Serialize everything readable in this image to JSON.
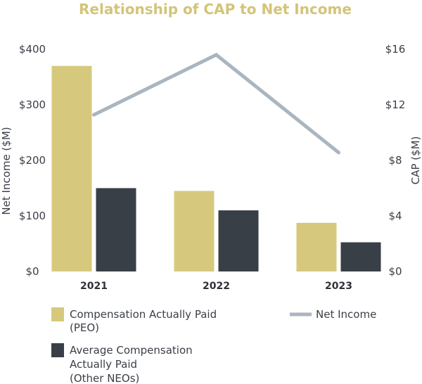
{
  "chart_data": {
    "type": "bar",
    "title": "Relationship of CAP to Net Income",
    "categories": [
      "2021",
      "2022",
      "2023"
    ],
    "ylabel_left": "Net Income ($M)",
    "ylabel_right": "CAP ($M)",
    "left_ticks": [
      "$0",
      "$100",
      "$200",
      "$300",
      "$400"
    ],
    "right_ticks": [
      "$0",
      "$4",
      "$8",
      "$12",
      "$16"
    ],
    "ylim_left": [
      0,
      400
    ],
    "ylim_right": [
      0,
      16
    ],
    "series": [
      {
        "name": "Compensation Actually Paid (PEO)",
        "legend_lines": [
          "Compensation Actually Paid",
          "(PEO)"
        ],
        "type": "bar",
        "axis": "right",
        "color": "#d6c97e",
        "values": [
          14.8,
          5.8,
          3.5
        ]
      },
      {
        "name": "Average Compensation Actually Paid (Other NEOs)",
        "legend_lines": [
          "Average Compensation",
          "Actually Paid",
          "(Other NEOs)"
        ],
        "type": "bar",
        "axis": "right",
        "color": "#393f47",
        "values": [
          6.0,
          4.4,
          2.1
        ]
      },
      {
        "name": "Net Income",
        "legend_lines": [
          "Net Income"
        ],
        "type": "line",
        "axis": "left",
        "color": "#aab5bf",
        "values": [
          282,
          390,
          214
        ]
      }
    ],
    "grid": false,
    "legend_position": "bottom"
  },
  "colors": {
    "title": "#d3c47a",
    "text": "#3a3f47"
  }
}
